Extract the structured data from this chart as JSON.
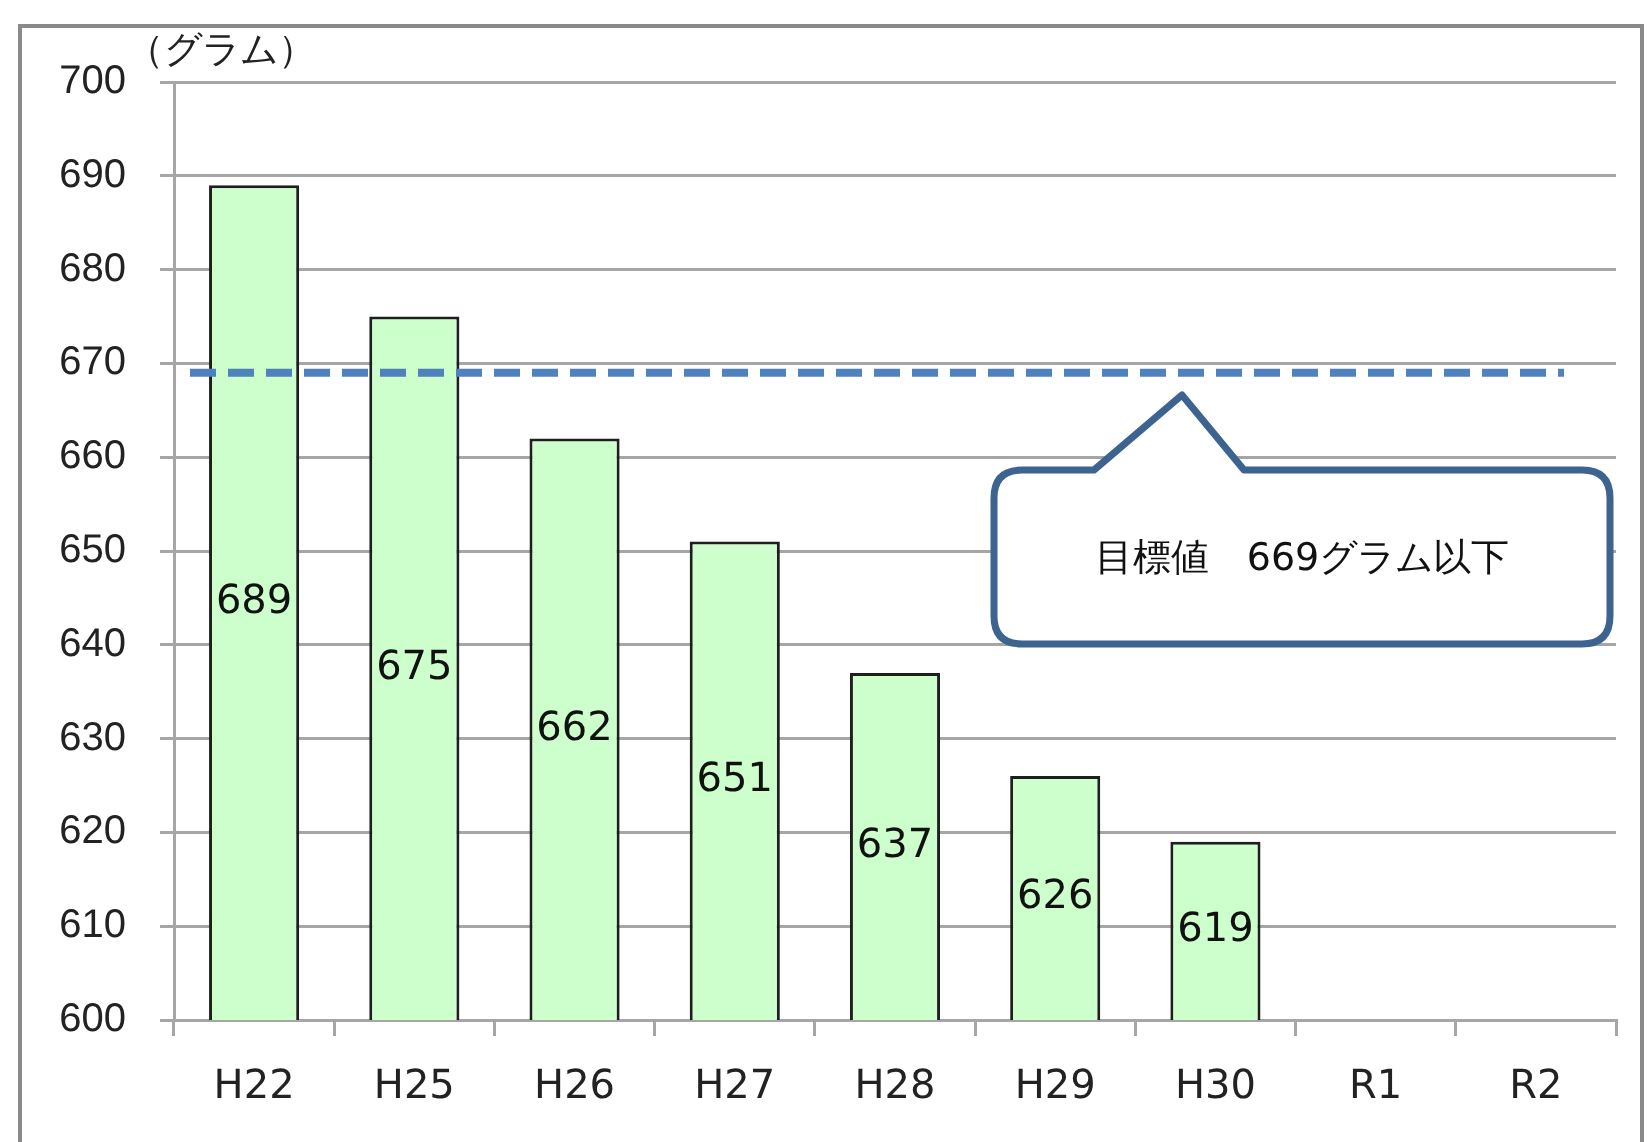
{
  "chart_data": {
    "type": "bar",
    "ylabel": "（グラム）",
    "categories": [
      "H22",
      "H25",
      "H26",
      "H27",
      "H28",
      "H29",
      "H30",
      "R1",
      "R2"
    ],
    "values": [
      689,
      675,
      662,
      651,
      637,
      626,
      619,
      null,
      null
    ],
    "color": "#ccffcc",
    "ylim": [
      600,
      700
    ],
    "yticks": [
      600,
      610,
      620,
      630,
      640,
      650,
      660,
      670,
      680,
      690,
      700
    ],
    "grid": "y",
    "data_labels": true,
    "legend": false,
    "ref_lines": [
      {
        "axis": "y",
        "value": 669,
        "color": "#4f81bd",
        "line_style": "dashed"
      }
    ],
    "annotations": [
      "目標値　669グラム以下"
    ]
  }
}
